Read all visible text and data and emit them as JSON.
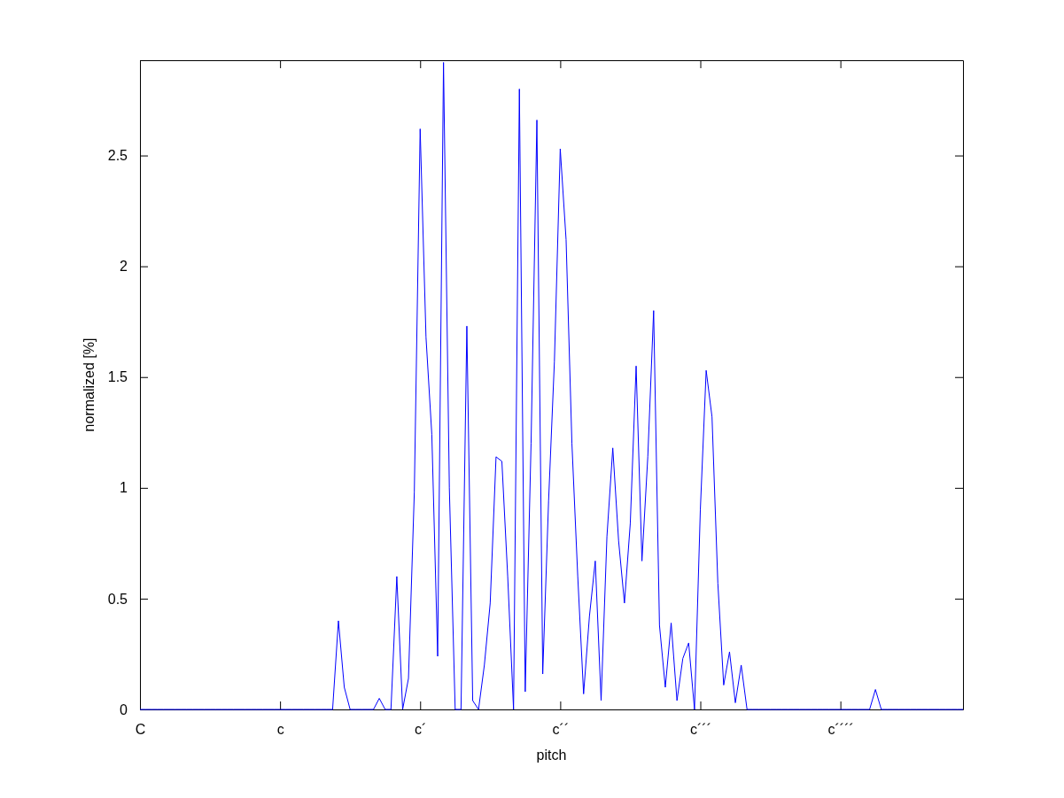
{
  "chart_data": {
    "type": "line",
    "xlabel": "pitch",
    "ylabel": "normalized [%]",
    "categories": [
      "C",
      null,
      null,
      null,
      null,
      null,
      null,
      null,
      null,
      null,
      null,
      null,
      null,
      null,
      null,
      null,
      null,
      null,
      null,
      null,
      null,
      null,
      null,
      null,
      "c",
      null,
      null,
      null,
      null,
      null,
      null,
      null,
      null,
      null,
      null,
      null,
      null,
      null,
      null,
      null,
      null,
      null,
      null,
      null,
      null,
      null,
      null,
      null,
      "c´",
      null,
      null,
      null,
      null,
      null,
      null,
      null,
      null,
      null,
      null,
      null,
      null,
      null,
      null,
      null,
      null,
      null,
      null,
      null,
      null,
      null,
      null,
      null,
      "c´´",
      null,
      null,
      null,
      null,
      null,
      null,
      null,
      null,
      null,
      null,
      null,
      null,
      null,
      null,
      null,
      null,
      null,
      null,
      null,
      null,
      null,
      null,
      null,
      "c´´´",
      null,
      null,
      null,
      null,
      null,
      null,
      null,
      null,
      null,
      null,
      null,
      null,
      null,
      null,
      null,
      null,
      null,
      null,
      null,
      null,
      null,
      null,
      null,
      "c´´´´",
      null,
      null,
      null,
      null,
      null,
      null,
      null,
      null,
      null,
      null,
      null,
      null,
      null,
      null,
      null,
      null,
      null,
      null,
      null,
      null,
      null
    ],
    "ylim": [
      0,
      2.93
    ],
    "yticks": [
      0,
      0.5,
      1,
      1.5,
      2,
      2.5
    ],
    "marker": "none",
    "line_style": "solid",
    "series": [
      {
        "color": "#0000ff",
        "values": [
          0,
          0,
          0,
          0,
          0,
          0,
          0,
          0,
          0,
          0,
          0,
          0,
          0,
          0,
          0,
          0,
          0,
          0,
          0,
          0,
          0,
          0,
          0,
          0,
          0,
          0,
          0,
          0,
          0,
          0,
          0,
          0,
          0,
          0,
          0.4,
          0.1,
          0,
          0,
          0,
          0,
          0,
          0.05,
          0,
          0,
          0.6,
          0,
          0.14,
          0.98,
          2.62,
          1.68,
          1.24,
          0.24,
          2.92,
          1,
          0,
          0,
          1.73,
          0.04,
          0,
          0.2,
          0.48,
          1.14,
          1.12,
          0.6,
          0,
          2.8,
          0.08,
          1.2,
          2.66,
          0.16,
          0.94,
          1.57,
          2.53,
          2.12,
          1.2,
          0.6,
          0.07,
          0.42,
          0.67,
          0.04,
          0.78,
          1.18,
          0.76,
          0.48,
          0.84,
          1.55,
          0.67,
          1.14,
          1.8,
          0.38,
          0.1,
          0.39,
          0.04,
          0.23,
          0.3,
          0,
          0.9,
          1.53,
          1.32,
          0.57,
          0.11,
          0.26,
          0.03,
          0.2,
          0,
          0,
          0,
          0,
          0,
          0,
          0,
          0,
          0,
          0,
          0,
          0,
          0,
          0,
          0,
          0,
          0,
          0,
          0,
          0,
          0,
          0,
          0.09,
          0,
          0,
          0,
          0,
          0,
          0,
          0,
          0,
          0,
          0,
          0,
          0,
          0,
          0,
          0
        ]
      }
    ]
  }
}
